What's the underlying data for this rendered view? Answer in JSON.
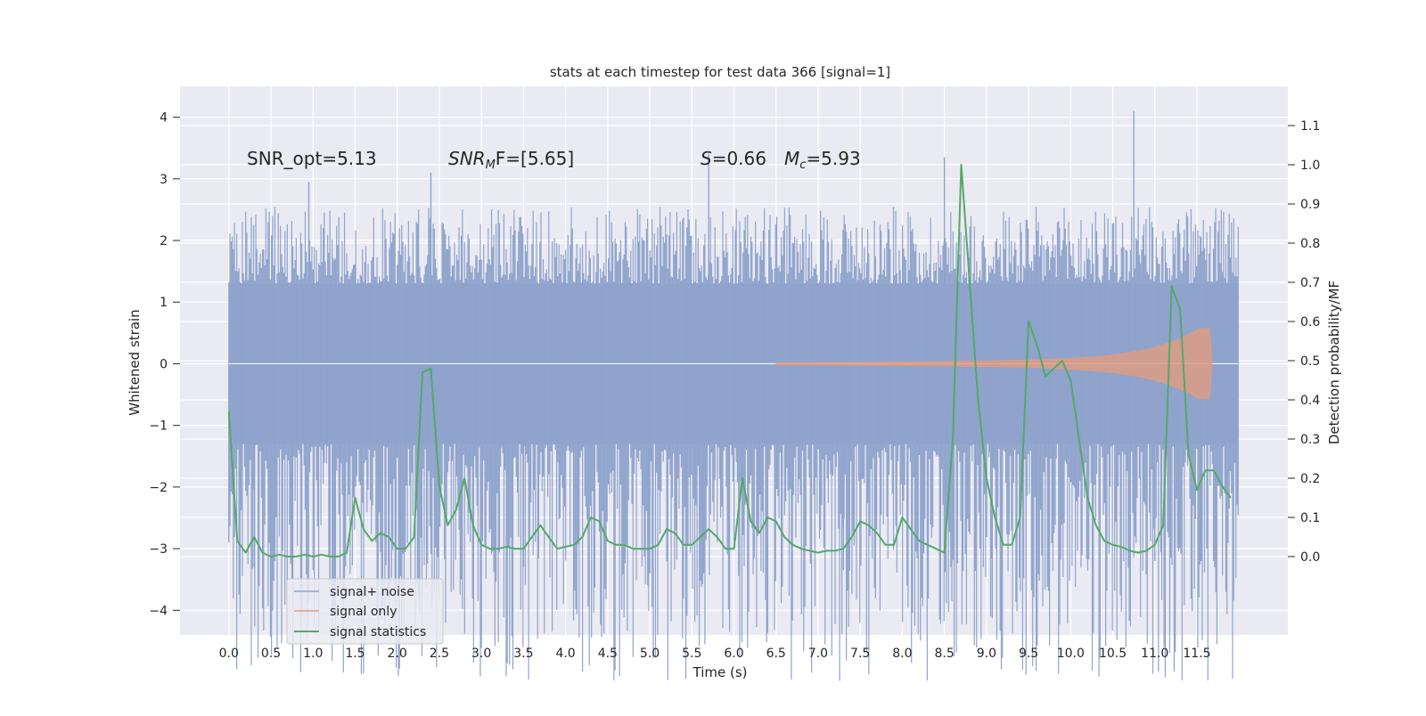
{
  "chart_data": {
    "type": "line",
    "title": "stats at each timestep for test data 366 [signal=1]",
    "xlabel": "Time (s)",
    "ylabel_left": "Whitened strain",
    "ylabel_right": "Detection probability/MF",
    "xlim": [
      -0.58,
      12.58
    ],
    "ylim_left": [
      -4.4,
      4.5
    ],
    "ylim_right": [
      -0.2,
      1.2
    ],
    "x_ticks": [
      "0.0",
      "0.5",
      "1.0",
      "1.5",
      "2.0",
      "2.5",
      "3.0",
      "3.5",
      "4.0",
      "4.5",
      "5.0",
      "5.5",
      "6.0",
      "6.5",
      "7.0",
      "7.5",
      "8.0",
      "8.5",
      "9.0",
      "9.5",
      "10.0",
      "10.5",
      "11.0",
      "11.5"
    ],
    "y_ticks_left": [
      "−4",
      "−3",
      "−2",
      "−1",
      "0",
      "1",
      "2",
      "3",
      "4"
    ],
    "y_ticks_right": [
      "0.0",
      "0.1",
      "0.2",
      "0.3",
      "0.4",
      "0.5",
      "0.6",
      "0.7",
      "0.8",
      "0.9",
      "1.0",
      "1.1"
    ],
    "grid": true,
    "legend_position": "lower-left",
    "annotations": {
      "snr_opt": "SNR_opt=5.13",
      "snr_mf_name": "SNR",
      "snr_mf_sub": "M",
      "snr_mf_rest": "F=[5.65]",
      "s_name": "S",
      "s_value": "=0.66",
      "mc_name": "M",
      "mc_sub": "c",
      "mc_value": "=5.93"
    },
    "colors": {
      "background": "#eaeaf2",
      "grid": "#ffffff",
      "signal_noise": "#8fa3cc",
      "signal_only": "#dd9c83",
      "signal_statistics": "#55a868"
    },
    "series": [
      {
        "name": "signal+ noise",
        "axis": "left",
        "kind": "noise-envelope",
        "t_start": 0.0,
        "t_end": 11.99,
        "band_upper": 1.3,
        "band_lower": -1.3,
        "typical_peak_upper": 2.2,
        "typical_peak_lower": -2.2,
        "extreme_points": [
          {
            "x": 0.0,
            "y": -2.9
          },
          {
            "x": 0.3,
            "y": -3.3
          },
          {
            "x": 0.75,
            "y": -3.5
          },
          {
            "x": 0.95,
            "y": 2.95
          },
          {
            "x": 1.2,
            "y": -3.6
          },
          {
            "x": 2.4,
            "y": 3.1
          },
          {
            "x": 3.5,
            "y": -3.3
          },
          {
            "x": 5.0,
            "y": -3.4
          },
          {
            "x": 5.7,
            "y": 3.4
          },
          {
            "x": 7.3,
            "y": -3.35
          },
          {
            "x": 8.5,
            "y": 3.35
          },
          {
            "x": 9.05,
            "y": -4.1
          },
          {
            "x": 10.75,
            "y": 4.1
          },
          {
            "x": 11.0,
            "y": -3.2
          },
          {
            "x": 11.55,
            "y": -3.2
          }
        ]
      },
      {
        "name": "signal only",
        "axis": "left",
        "kind": "chirp",
        "t_start": 6.5,
        "t_peak": 11.65,
        "t_end": 11.68,
        "amplitude_start": 0.02,
        "amplitude_peak": 0.6
      },
      {
        "name": "signal statistics",
        "axis": "right",
        "kind": "line",
        "x": [
          0.0,
          0.1,
          0.2,
          0.3,
          0.4,
          0.5,
          0.6,
          0.7,
          0.8,
          0.9,
          1.0,
          1.1,
          1.2,
          1.3,
          1.4,
          1.5,
          1.6,
          1.7,
          1.8,
          1.9,
          2.0,
          2.1,
          2.2,
          2.3,
          2.4,
          2.5,
          2.6,
          2.7,
          2.8,
          2.9,
          3.0,
          3.1,
          3.2,
          3.3,
          3.4,
          3.5,
          3.6,
          3.7,
          3.8,
          3.9,
          4.0,
          4.1,
          4.2,
          4.3,
          4.4,
          4.5,
          4.6,
          4.7,
          4.8,
          4.9,
          5.0,
          5.1,
          5.2,
          5.3,
          5.4,
          5.5,
          5.6,
          5.7,
          5.8,
          5.9,
          6.0,
          6.1,
          6.2,
          6.3,
          6.4,
          6.5,
          6.6,
          6.7,
          6.8,
          6.9,
          7.0,
          7.1,
          7.2,
          7.3,
          7.4,
          7.5,
          7.6,
          7.7,
          7.8,
          7.9,
          8.0,
          8.1,
          8.2,
          8.3,
          8.4,
          8.5,
          8.6,
          8.7,
          8.8,
          8.9,
          9.0,
          9.1,
          9.2,
          9.3,
          9.4,
          9.5,
          9.6,
          9.7,
          9.8,
          9.9,
          10.0,
          10.1,
          10.2,
          10.3,
          10.4,
          10.5,
          10.6,
          10.7,
          10.8,
          10.9,
          11.0,
          11.1,
          11.2,
          11.3,
          11.4,
          11.5,
          11.6,
          11.7,
          11.8,
          11.9
        ],
        "y": [
          0.37,
          0.04,
          0.01,
          0.05,
          0.01,
          0.0,
          0.005,
          0.0,
          0.0,
          0.005,
          0.0,
          0.005,
          0.0,
          0.0,
          0.01,
          0.15,
          0.07,
          0.04,
          0.06,
          0.05,
          0.02,
          0.02,
          0.05,
          0.47,
          0.48,
          0.18,
          0.08,
          0.12,
          0.2,
          0.08,
          0.03,
          0.02,
          0.02,
          0.025,
          0.02,
          0.02,
          0.05,
          0.08,
          0.05,
          0.02,
          0.025,
          0.03,
          0.05,
          0.1,
          0.09,
          0.04,
          0.03,
          0.03,
          0.02,
          0.02,
          0.02,
          0.03,
          0.07,
          0.06,
          0.03,
          0.03,
          0.05,
          0.07,
          0.05,
          0.02,
          0.02,
          0.2,
          0.09,
          0.06,
          0.1,
          0.09,
          0.05,
          0.03,
          0.02,
          0.015,
          0.01,
          0.015,
          0.015,
          0.02,
          0.05,
          0.09,
          0.08,
          0.06,
          0.03,
          0.03,
          0.1,
          0.07,
          0.04,
          0.03,
          0.02,
          0.01,
          0.3,
          1.0,
          0.7,
          0.4,
          0.2,
          0.1,
          0.03,
          0.03,
          0.1,
          0.6,
          0.54,
          0.46,
          0.48,
          0.5,
          0.45,
          0.3,
          0.15,
          0.08,
          0.04,
          0.03,
          0.025,
          0.015,
          0.01,
          0.015,
          0.03,
          0.08,
          0.69,
          0.63,
          0.26,
          0.17,
          0.22,
          0.22,
          0.18,
          0.15
        ]
      }
    ]
  }
}
